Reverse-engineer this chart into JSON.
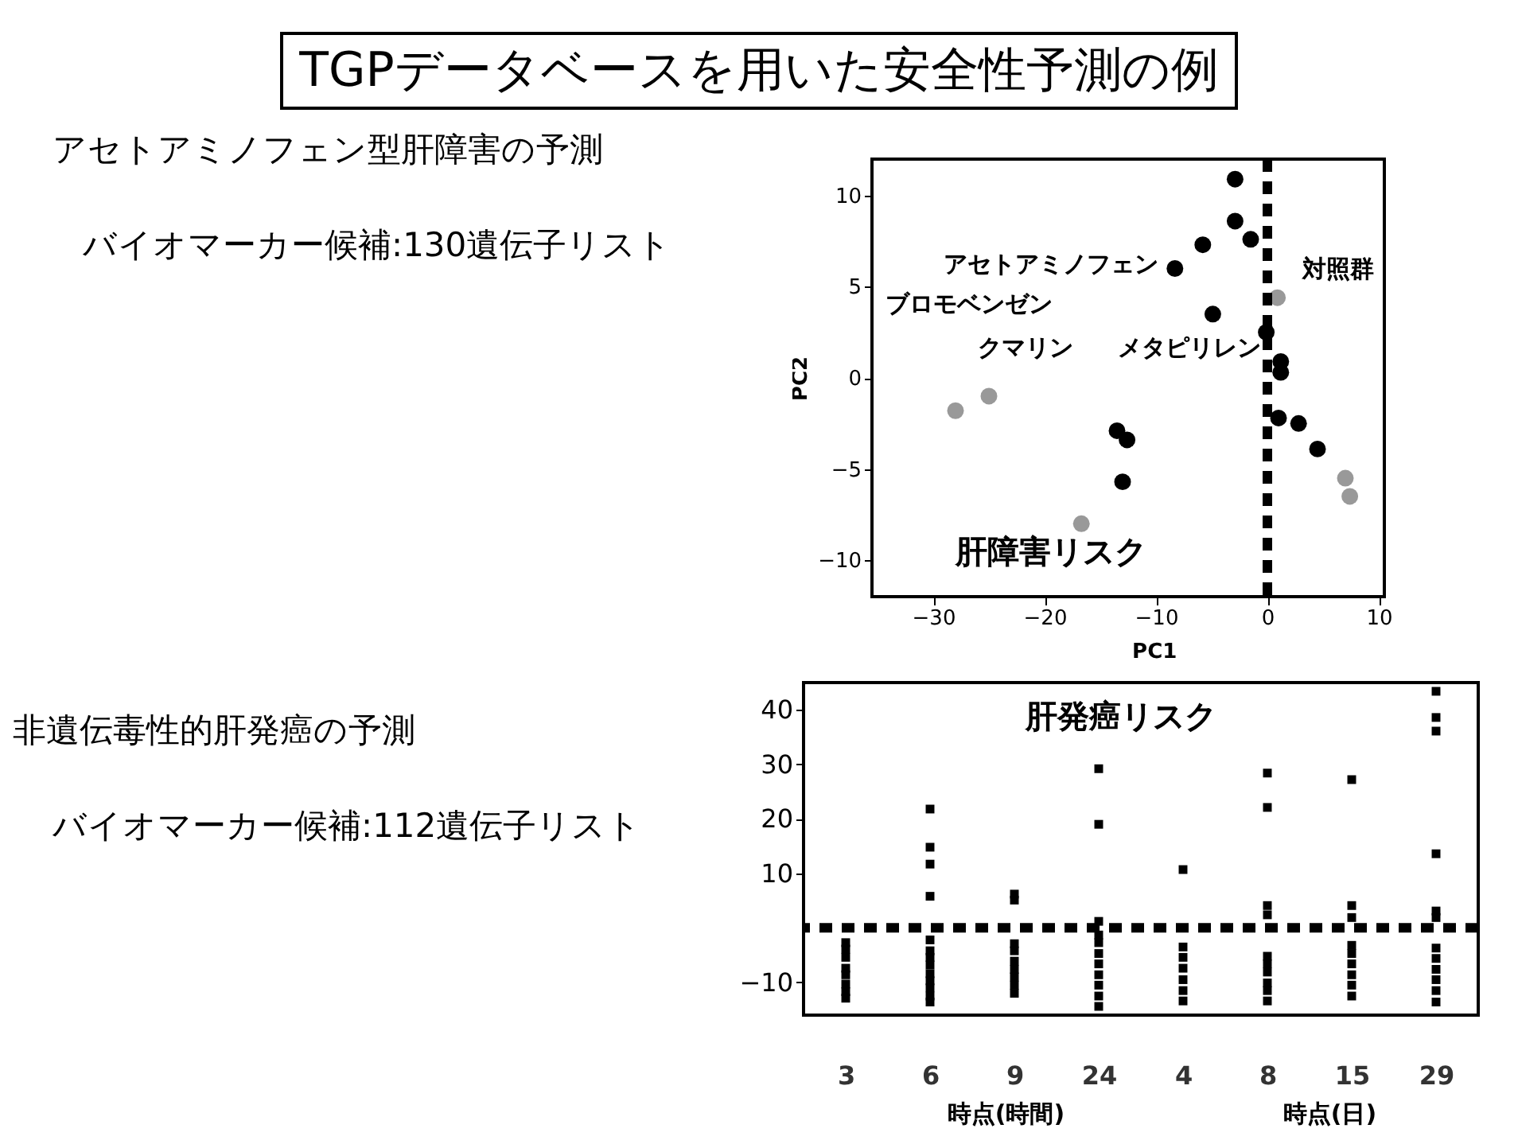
{
  "chart_data": [
    {
      "type": "other",
      "title": "TGPデータベースを用いた安全性予測の例",
      "annotations": [
        "アセトアミノフェン型肝障害の予測",
        "バイオマーカー候補:130遺伝子リスト",
        "非遺伝毒性的肝発癌の予測",
        "バイオマーカー候補:112遺伝子リスト"
      ]
    },
    {
      "type": "scatter",
      "xlabel": "PC1",
      "ylabel": "PC2",
      "xlim": [
        -35.5,
        10.5
      ],
      "xticks": [
        -30,
        -20,
        -10,
        0,
        10
      ],
      "ylim": [
        -12,
        12
      ],
      "yticks": [
        -10,
        -5,
        0,
        5,
        10
      ],
      "marker": "circle",
      "grid": false,
      "series": [
        {
          "color": "#000000",
          "x": [
            -2.9,
            -2.9,
            -1.5,
            -5.8,
            -8.3,
            -4.9,
            -0.1,
            1.2,
            1.2,
            1.0,
            2.8,
            4.5,
            -13.5,
            -12.6,
            -13.0
          ],
          "values": [
            10.9,
            8.6,
            7.6,
            7.3,
            6.0,
            3.5,
            2.5,
            0.9,
            0.3,
            -2.2,
            -2.5,
            -3.9,
            -2.9,
            -3.4,
            -5.7
          ]
        },
        {
          "color": "#999999",
          "x": [
            -28.0,
            -25.0,
            -16.7,
            7.0,
            7.4,
            0.9
          ],
          "values": [
            -1.8,
            -1.0,
            -8.0,
            -5.5,
            -6.5,
            4.4
          ]
        }
      ],
      "ref_lines": [
        {
          "axis": "x",
          "value": 0,
          "color": "#000000",
          "line_style": "dashed"
        }
      ],
      "annotations": [
        "アセトアミノフェン",
        "ブロモベンゼン",
        "クマリン",
        "メタピリレン",
        "対照群",
        "肝障害リスク"
      ]
    },
    {
      "type": "scatter",
      "categories": [
        "3",
        "6",
        "9",
        "24",
        "4",
        "8",
        "15",
        "29"
      ],
      "ylim": [
        -16,
        45
      ],
      "yticks": [
        -10,
        10,
        20,
        30,
        40
      ],
      "grid": false,
      "marker": "square",
      "series": [
        {
          "color": "#000000",
          "x": [
            "3",
            "3",
            "3",
            "3",
            "3",
            "3",
            "3",
            "3",
            "6",
            "6",
            "6",
            "6",
            "6",
            "6",
            "6",
            "6",
            "6",
            "6",
            "6",
            "6",
            "6",
            "9",
            "9",
            "9",
            "9",
            "9",
            "9",
            "9",
            "9",
            "9",
            "24",
            "24",
            "24",
            "24",
            "24",
            "24",
            "24",
            "24",
            "24",
            "24",
            "24",
            "4",
            "4",
            "4",
            "4",
            "4",
            "4",
            "4",
            "8",
            "8",
            "8",
            "8",
            "8",
            "8",
            "8",
            "8",
            "8",
            "8",
            "15",
            "15",
            "15",
            "15",
            "15",
            "15",
            "15",
            "15",
            "15",
            "29",
            "29",
            "29",
            "29",
            "29",
            "29",
            "29",
            "29",
            "29",
            "29",
            "29",
            "29"
          ],
          "values": [
            -2.7,
            -3.9,
            -5.4,
            -7.4,
            -8.6,
            -10.3,
            -11.7,
            -12.9,
            21.8,
            14.8,
            11.7,
            5.8,
            -2.2,
            -4.2,
            -5.4,
            -6.8,
            -8.4,
            -9.7,
            -11.0,
            -12.5,
            -13.6,
            6.2,
            5.1,
            -2.9,
            -4.2,
            -6.1,
            -7.6,
            -9.0,
            -10.5,
            -12.0,
            29.2,
            19.0,
            1.2,
            -1.3,
            -2.7,
            -4.7,
            -6.6,
            -8.6,
            -10.5,
            -12.5,
            -14.4,
            10.7,
            -3.5,
            -5.4,
            -7.4,
            -9.5,
            -11.5,
            -13.4,
            28.4,
            22.1,
            4.1,
            2.4,
            -5.2,
            -6.6,
            -8.1,
            -10.1,
            -11.5,
            -13.4,
            27.2,
            4.1,
            1.9,
            -3.2,
            -4.7,
            -6.6,
            -8.6,
            -10.5,
            -12.5,
            43.4,
            38.6,
            36.1,
            13.6,
            3.1,
            1.9,
            -3.7,
            -5.6,
            -7.6,
            -9.5,
            -11.5,
            -13.6
          ]
        }
      ],
      "ref_lines": [
        {
          "axis": "y",
          "value": 0,
          "color": "#000000",
          "line_style": "dashed"
        }
      ],
      "annotations": [
        "肝発癌リスク",
        "時点(時間)",
        "時点(日)"
      ]
    }
  ]
}
